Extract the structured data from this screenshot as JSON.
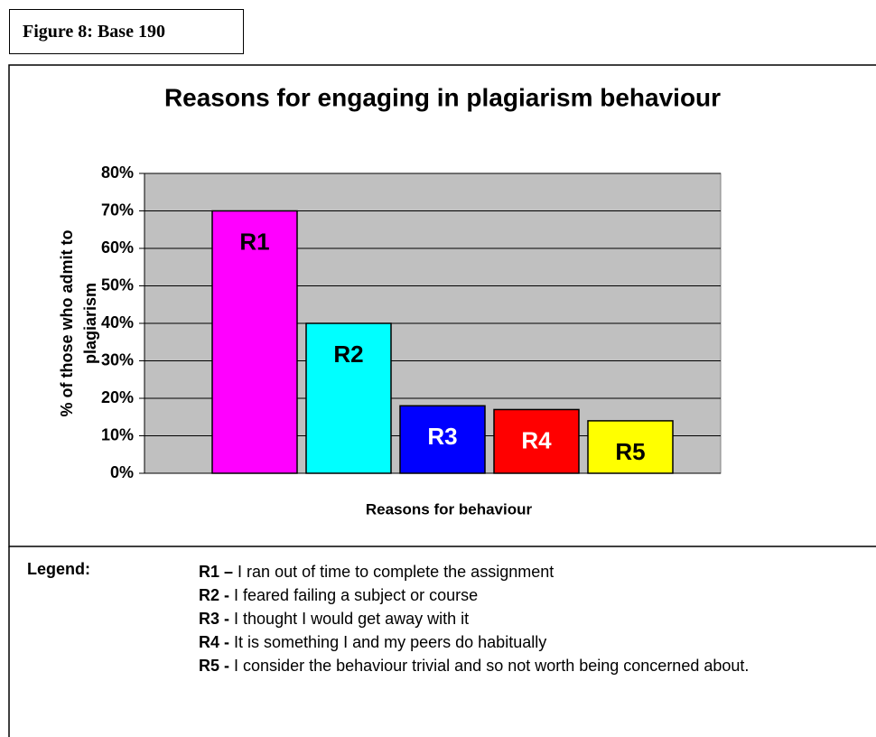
{
  "figure_label": "Figure 8: Base 190",
  "chart_data": {
    "type": "bar",
    "title": "Reasons for engaging in plagiarism behaviour",
    "x_label": "Reasons for behaviour",
    "y_label": [
      "% of  those who admit to",
      "plagiarism"
    ],
    "categories": [
      "R1",
      "R2",
      "R3",
      "R4",
      "R5"
    ],
    "values": [
      70,
      40,
      18,
      17,
      14
    ],
    "colors": [
      "#ff00ff",
      "#00ffff",
      "#0000ff",
      "#ff0000",
      "#ffff00"
    ],
    "label_colors": [
      "#000000",
      "#000000",
      "#ffffff",
      "#ffffff",
      "#000000"
    ],
    "ylim": [
      0,
      80
    ],
    "yticks": [
      {
        "value": 0,
        "label": "0%"
      },
      {
        "value": 10,
        "label": "10%"
      },
      {
        "value": 20,
        "label": "20%"
      },
      {
        "value": 30,
        "label": "30%"
      },
      {
        "value": 40,
        "label": "40%"
      },
      {
        "value": 50,
        "label": "50%"
      },
      {
        "value": 60,
        "label": "60%"
      },
      {
        "value": 70,
        "label": "70%"
      },
      {
        "value": 80,
        "label": "80%"
      }
    ],
    "grid": true
  },
  "legend": {
    "title": "Legend:",
    "items": [
      {
        "key": "R1 –",
        "text": "I ran out of time to complete the assignment"
      },
      {
        "key": "R2 -",
        "text": "I feared failing a subject or course"
      },
      {
        "key": "R3 -",
        "text": "I thought I would get away with it"
      },
      {
        "key": "R4  -",
        "text": "It is something I and my peers do habitually"
      },
      {
        "key": "R5 -",
        "text": "I consider the behaviour trivial and so not worth being concerned about."
      }
    ]
  }
}
